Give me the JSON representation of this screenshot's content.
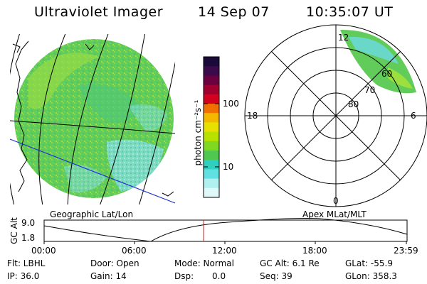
{
  "header": {
    "instrument": "Ultraviolet Imager",
    "date": "14 Sep 07",
    "time": "10:35:07 UT"
  },
  "colorbar": {
    "label": "photon cm⁻²s⁻¹",
    "ticks": [
      "100",
      "10"
    ],
    "scale": "log",
    "colors": [
      "#1a0a3a",
      "#3a0a4a",
      "#6a0040",
      "#a00030",
      "#d40020",
      "#f07000",
      "#f5b800",
      "#e8e000",
      "#b8e000",
      "#80d820",
      "#50c850",
      "#30d0c0",
      "#60e0e0",
      "#b0f0f0",
      "#e0f8f8"
    ]
  },
  "left_panel": {
    "label": "Geographic Lat/Lon",
    "fill_colors": [
      "#58c860",
      "#7cd050",
      "#a8dc40",
      "#60d0c0",
      "#a0e8e8"
    ]
  },
  "right_panel": {
    "label": "Apex MLat/MLT",
    "mlt_labels": {
      "top": "12",
      "left": "18",
      "right": "6",
      "bottom": "0"
    },
    "lat_labels": [
      "60",
      "70",
      "80"
    ]
  },
  "timeline": {
    "ylabel": "GC Alt",
    "y_top": "9.0",
    "y_bottom": "1.8",
    "x_ticks": [
      "00:00",
      "06:00",
      "12:00",
      "18:00",
      "23:59"
    ],
    "marker_color": "#d02020"
  },
  "status": {
    "flt": "Flt: LBHL",
    "ip": "IP: 36.0",
    "door": "Door: Open",
    "gain": "Gain: 14",
    "mode": "Mode: Normal",
    "dsp_label": "Dsp:",
    "dsp_value": "0.0",
    "gc_alt": "GC Alt: 6.1 Re",
    "seq": "Seq: 39",
    "glat": "GLat: -55.9",
    "glon": "GLon: 358.3"
  }
}
